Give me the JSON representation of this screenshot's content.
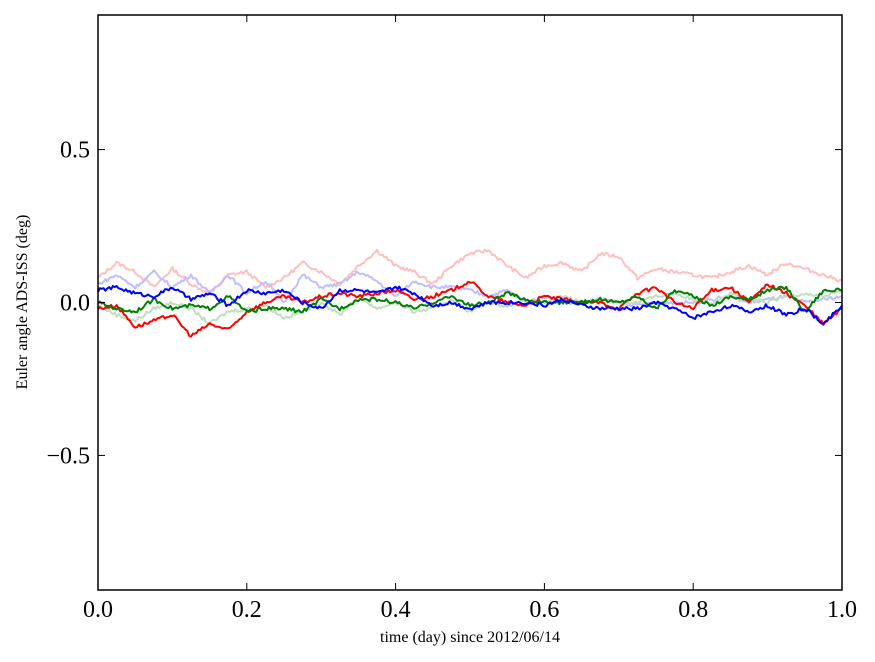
{
  "chart_data": {
    "type": "line",
    "title": "",
    "xlabel": "time (day) since 2012/06/14",
    "ylabel": "Euler angle ADS-ISS (deg)",
    "xlim": [
      0.0,
      1.0
    ],
    "ylim": [
      -0.94,
      0.94
    ],
    "xticks": [
      0.0,
      0.2,
      0.4,
      0.6,
      0.8,
      1.0
    ],
    "xtick_labels": [
      "0.0",
      "0.2",
      "0.4",
      "0.6",
      "0.8",
      "1.0"
    ],
    "yticks": [
      0.5,
      0.0,
      -0.5
    ],
    "ytick_labels": [
      "0.5",
      "0.0",
      "−0.5"
    ],
    "grid": false,
    "x_step": 0.025,
    "series": [
      {
        "name": "light red",
        "color": "#ffbfbf",
        "values": [
          0.08,
          0.13,
          0.1,
          0.05,
          0.11,
          0.06,
          0.03,
          0.09,
          0.1,
          0.05,
          0.08,
          0.13,
          0.1,
          0.06,
          0.12,
          0.17,
          0.12,
          0.1,
          0.06,
          0.12,
          0.16,
          0.17,
          0.12,
          0.08,
          0.12,
          0.13,
          0.1,
          0.16,
          0.15,
          0.08,
          0.11,
          0.1,
          0.09,
          0.08,
          0.1,
          0.12,
          0.09,
          0.13,
          0.11,
          0.09,
          0.07
        ]
      },
      {
        "name": "light blue",
        "color": "#bfbfff",
        "values": [
          0.06,
          0.09,
          0.05,
          0.1,
          0.05,
          0.09,
          0.03,
          0.09,
          0.03,
          0.07,
          0.0,
          0.09,
          0.05,
          0.06,
          0.1,
          0.07,
          0.02,
          0.07,
          0.05,
          0.05,
          0.04,
          0.02,
          0.04,
          0.0,
          0.02,
          0.0,
          0.0,
          0.01,
          0.0,
          -0.01,
          0.0,
          0.0,
          0.0,
          0.01,
          0.02,
          0.0,
          0.01,
          0.02,
          0.0,
          0.01,
          0.02
        ]
      },
      {
        "name": "light green",
        "color": "#bfdfbf",
        "values": [
          -0.01,
          -0.04,
          -0.06,
          -0.02,
          0.0,
          -0.02,
          -0.07,
          -0.03,
          -0.02,
          -0.01,
          -0.05,
          -0.03,
          0.0,
          -0.04,
          0.02,
          -0.02,
          0.0,
          -0.03,
          -0.02,
          0.01,
          -0.03,
          0.0,
          -0.01,
          0.0,
          0.0,
          0.02,
          0.0,
          0.01,
          0.0,
          0.0,
          0.02,
          0.03,
          0.01,
          0.0,
          0.03,
          0.01,
          0.0,
          0.02,
          0.03,
          0.02,
          0.04
        ]
      },
      {
        "name": "red",
        "color": "#ff0000",
        "values": [
          -0.02,
          -0.01,
          -0.08,
          -0.06,
          -0.04,
          -0.11,
          -0.07,
          -0.09,
          -0.03,
          0.0,
          0.02,
          0.0,
          0.02,
          0.03,
          0.02,
          0.03,
          0.04,
          0.01,
          0.02,
          0.04,
          0.07,
          0.02,
          0.0,
          -0.01,
          0.02,
          0.01,
          0.0,
          0.0,
          -0.02,
          0.03,
          0.05,
          0.0,
          -0.02,
          0.04,
          0.05,
          0.0,
          0.06,
          0.03,
          -0.01,
          -0.07,
          -0.02
        ]
      },
      {
        "name": "green",
        "color": "#008000",
        "values": [
          0.0,
          -0.02,
          -0.03,
          0.01,
          -0.02,
          -0.01,
          -0.02,
          0.02,
          -0.03,
          -0.02,
          -0.02,
          -0.03,
          0.01,
          -0.02,
          0.01,
          0.01,
          0.0,
          -0.02,
          0.0,
          0.02,
          -0.01,
          0.0,
          0.03,
          0.01,
          0.0,
          0.0,
          0.0,
          0.01,
          0.0,
          0.02,
          -0.02,
          0.04,
          0.02,
          -0.01,
          0.02,
          0.01,
          0.04,
          0.05,
          -0.03,
          0.04,
          0.04
        ]
      },
      {
        "name": "blue",
        "color": "#0000ff",
        "values": [
          0.04,
          0.05,
          0.03,
          0.02,
          0.05,
          0.01,
          0.03,
          -0.01,
          0.04,
          0.03,
          0.04,
          0.0,
          -0.02,
          0.04,
          0.04,
          0.03,
          0.05,
          0.03,
          -0.01,
          0.0,
          -0.02,
          0.0,
          0.0,
          0.0,
          -0.01,
          0.01,
          -0.01,
          -0.02,
          -0.02,
          -0.02,
          0.0,
          -0.02,
          -0.05,
          -0.03,
          -0.01,
          -0.03,
          -0.01,
          -0.04,
          -0.02,
          -0.07,
          -0.01
        ]
      }
    ]
  }
}
